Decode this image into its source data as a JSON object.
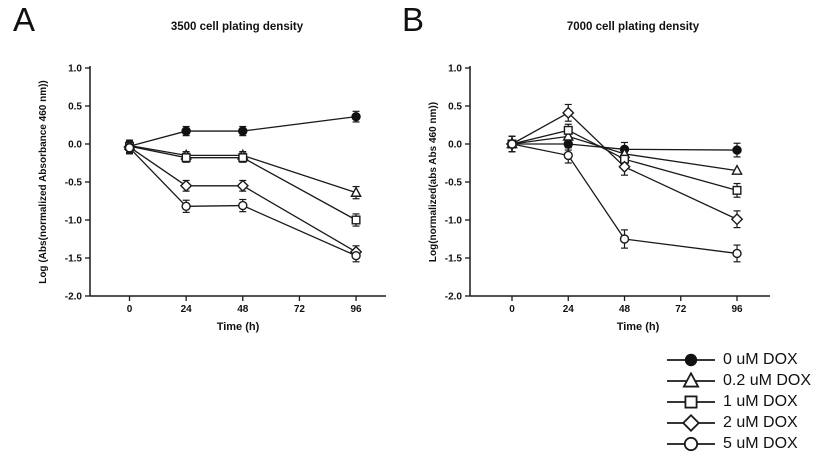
{
  "panels": [
    {
      "label": "A"
    },
    {
      "label": "B"
    }
  ],
  "legend": {
    "items": [
      {
        "label": "0 uM DOX",
        "marker": "circle-filled"
      },
      {
        "label": "0.2 uM DOX",
        "marker": "triangle-open"
      },
      {
        "label": "1 uM DOX",
        "marker": "square-open"
      },
      {
        "label": "2 uM DOX",
        "marker": "diamond-open"
      },
      {
        "label": "5 uM DOX",
        "marker": "circle-open"
      }
    ]
  },
  "colors": {
    "line": "#1a1a1a",
    "marker_fill_open": "#ffffff",
    "marker_fill_filled": "#111111"
  },
  "chart_data": [
    {
      "type": "line",
      "title": "3500 cell plating density",
      "xlabel": "Time (h)",
      "ylabel": "Log (Abs(normalized Absorbance 460 nm))",
      "x": [
        0,
        24,
        48,
        96
      ],
      "xticks": [
        0,
        24,
        48,
        72,
        96
      ],
      "yticks": [
        "1.0",
        "0.5",
        "0.0",
        "-0.5",
        "-1.0",
        "-1.5",
        "-2.0"
      ],
      "ylim": [
        -2.0,
        1.0
      ],
      "grid": false,
      "error_bars": true,
      "series": [
        {
          "name": "0 uM DOX",
          "marker": "circle-filled",
          "values": [
            -0.03,
            0.17,
            0.17,
            0.36
          ],
          "errors": [
            0.08,
            0.06,
            0.06,
            0.07
          ]
        },
        {
          "name": "0.2 uM DOX",
          "marker": "triangle-open",
          "values": [
            -0.02,
            -0.15,
            -0.15,
            -0.64
          ],
          "errors": [
            0.07,
            0.05,
            0.05,
            0.08
          ]
        },
        {
          "name": "1 uM DOX",
          "marker": "square-open",
          "values": [
            -0.03,
            -0.18,
            -0.18,
            -1.0
          ],
          "errors": [
            0.08,
            0.06,
            0.06,
            0.08
          ]
        },
        {
          "name": "2 uM DOX",
          "marker": "diamond-open",
          "values": [
            -0.04,
            -0.55,
            -0.55,
            -1.42
          ],
          "errors": [
            0.08,
            0.07,
            0.07,
            0.08
          ]
        },
        {
          "name": "5 uM DOX",
          "marker": "circle-open",
          "values": [
            -0.05,
            -0.82,
            -0.81,
            -1.47
          ],
          "errors": [
            0.08,
            0.08,
            0.08,
            0.08
          ]
        }
      ]
    },
    {
      "type": "line",
      "title": "7000 cell plating density",
      "xlabel": "Time (h)",
      "ylabel": "Log(normalized(abs Abs 460 nm))",
      "x": [
        0,
        24,
        48,
        96
      ],
      "xticks": [
        0,
        24,
        48,
        72,
        96
      ],
      "yticks": [
        "1.0",
        "0.5",
        "0.0",
        "-0.5",
        "-1.0",
        "-1.5",
        "-2.0"
      ],
      "ylim": [
        -2.0,
        1.0
      ],
      "grid": false,
      "error_bars": true,
      "series": [
        {
          "name": "0 uM DOX",
          "marker": "circle-filled",
          "values": [
            0.0,
            0.0,
            -0.07,
            -0.08
          ],
          "errors": [
            0.1,
            0.08,
            0.09,
            0.09
          ]
        },
        {
          "name": "0.2 uM DOX",
          "marker": "triangle-open",
          "values": [
            0.0,
            0.1,
            -0.13,
            -0.35
          ],
          "errors": [
            0.1,
            0.08,
            0.08,
            0.04
          ]
        },
        {
          "name": "1 uM DOX",
          "marker": "square-open",
          "values": [
            0.0,
            0.18,
            -0.2,
            -0.61
          ],
          "errors": [
            0.1,
            0.08,
            0.1,
            0.09
          ]
        },
        {
          "name": "2 uM DOX",
          "marker": "diamond-open",
          "values": [
            0.0,
            0.41,
            -0.3,
            -0.99
          ],
          "errors": [
            0.1,
            0.11,
            0.11,
            0.11
          ]
        },
        {
          "name": "5 uM DOX",
          "marker": "circle-open",
          "values": [
            0.0,
            -0.15,
            -1.25,
            -1.44
          ],
          "errors": [
            0.1,
            0.1,
            0.12,
            0.11
          ]
        }
      ]
    }
  ]
}
